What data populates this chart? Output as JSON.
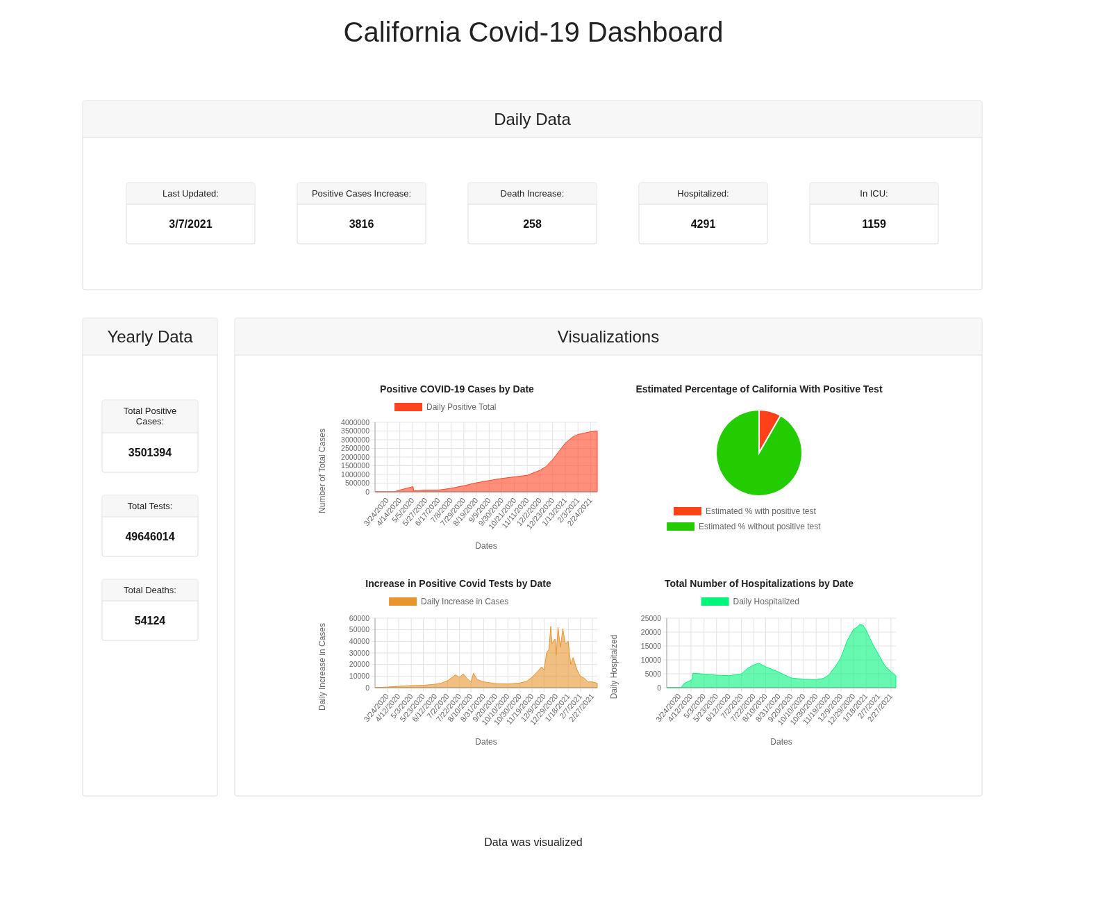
{
  "chart_data": [
    {
      "type": "other",
      "title": "California Covid-19 Dashboard",
      "annotations": [
        "Data was visualized"
      ]
    },
    {
      "type": "other",
      "title": "Daily Data",
      "annotations": [
        "Last Updated:",
        "3/7/2021",
        "Positive Cases Increase:",
        "3816",
        "Death Increase:",
        "258",
        "Hospitalized:",
        "4291",
        "In ICU:",
        "1159"
      ]
    },
    {
      "type": "other",
      "title": "Yearly Data",
      "annotations": [
        "Total Positive Cases:",
        "3501394",
        "Total Tests:",
        "49646014",
        "Total Deaths:",
        "54124"
      ]
    },
    {
      "type": "other",
      "title": "Visualizations"
    },
    {
      "type": "area",
      "title": "Positive COVID-19 Cases by Date",
      "xlabel": "Dates",
      "ylabel": "Number of Total Cases",
      "legend": "top",
      "grid": true,
      "x": [
        "2020-03-04",
        "2020-03-24",
        "2020-04-05",
        "2020-04-14",
        "2020-04-25",
        "2020-05-06",
        "2020-05-07",
        "2020-05-27",
        "2020-06-17",
        "2020-07-08",
        "2020-07-29",
        "2020-08-19",
        "2020-09-09",
        "2020-09-30",
        "2020-10-21",
        "2020-11-11",
        "2020-12-02",
        "2020-12-12",
        "2020-12-23",
        "2021-01-13",
        "2021-01-25",
        "2021-02-03",
        "2021-02-24",
        "2021-03-07"
      ],
      "series": [
        {
          "name": "Daily Positive Total",
          "color": "#ff4422",
          "values": [
            0,
            0,
            0,
            100000,
            200000,
            300000,
            50000,
            100000,
            100000,
            200000,
            350000,
            520000,
            650000,
            770000,
            860000,
            950000,
            1240000,
            1450000,
            1850000,
            2800000,
            3150000,
            3300000,
            3460000,
            3500000
          ]
        }
      ],
      "xlim": [
        "2020-03-04",
        "2021-03-07"
      ],
      "xticks": [
        {
          "value": "2020-03-24",
          "label": "3/24/2020"
        },
        {
          "value": "2020-04-14",
          "label": "4/14/2020"
        },
        {
          "value": "2020-05-05",
          "label": "5/5/2020"
        },
        {
          "value": "2020-05-27",
          "label": "5/27/2020"
        },
        {
          "value": "2020-06-17",
          "label": "6/17/2020"
        },
        {
          "value": "2020-07-08",
          "label": "7/8/2020"
        },
        {
          "value": "2020-07-29",
          "label": "7/29/2020"
        },
        {
          "value": "2020-08-19",
          "label": "8/19/2020"
        },
        {
          "value": "2020-09-09",
          "label": "9/9/2020"
        },
        {
          "value": "2020-09-30",
          "label": "9/30/2020"
        },
        {
          "value": "2020-10-21",
          "label": "10/21/2020"
        },
        {
          "value": "2020-11-11",
          "label": "11/11/2020"
        },
        {
          "value": "2020-12-02",
          "label": "12/2/2020"
        },
        {
          "value": "2020-12-23",
          "label": "12/23/2020"
        },
        {
          "value": "2021-01-13",
          "label": "1/13/2021"
        },
        {
          "value": "2021-02-03",
          "label": "2/3/2021"
        },
        {
          "value": "2021-02-24",
          "label": "2/24/2021"
        }
      ],
      "ylim": [
        0,
        4000000
      ],
      "yticks": [
        0,
        500000,
        1000000,
        1500000,
        2000000,
        2500000,
        3000000,
        3500000,
        4000000
      ]
    },
    {
      "type": "pie",
      "title": "Estimated Percentage of California With Positive Test",
      "legend": "bottom",
      "categories": [
        "Estimated % with positive test",
        "Estimated % without positive test"
      ],
      "values": [
        8.3,
        91.7
      ],
      "colors": [
        "#ff4119",
        "#22cc00"
      ]
    },
    {
      "type": "area",
      "title": "Increase in Positive Covid Tests by Date",
      "xlabel": "Dates",
      "ylabel": "Daily Increase in Cases",
      "legend": "top",
      "grid": true,
      "x": [
        "2020-03-04",
        "2020-03-24",
        "2020-04-12",
        "2020-05-03",
        "2020-05-23",
        "2020-06-12",
        "2020-06-22",
        "2020-07-02",
        "2020-07-10",
        "2020-07-15",
        "2020-07-22",
        "2020-07-28",
        "2020-08-03",
        "2020-08-10",
        "2020-08-14",
        "2020-08-20",
        "2020-08-31",
        "2020-09-20",
        "2020-10-10",
        "2020-10-30",
        "2020-11-10",
        "2020-11-19",
        "2020-11-28",
        "2020-12-05",
        "2020-12-09",
        "2020-12-13",
        "2020-12-17",
        "2020-12-20",
        "2020-12-22",
        "2020-12-27",
        "2020-12-29",
        "2021-01-01",
        "2021-01-05",
        "2021-01-09",
        "2021-01-13",
        "2021-01-18",
        "2021-01-22",
        "2021-01-26",
        "2021-02-01",
        "2021-02-07",
        "2021-02-14",
        "2021-02-20",
        "2021-02-27",
        "2021-03-07"
      ],
      "series": [
        {
          "name": "Daily Increase in Cases",
          "color": "#e8952e",
          "values": [
            0,
            500,
            1200,
            1800,
            2000,
            3000,
            4000,
            6000,
            9000,
            11000,
            9000,
            12000,
            8000,
            5000,
            12500,
            7000,
            5000,
            3500,
            3200,
            4000,
            5500,
            9000,
            14000,
            18000,
            15000,
            30000,
            33000,
            53000,
            38000,
            42000,
            28000,
            52000,
            35000,
            51000,
            38000,
            40000,
            20000,
            26000,
            16000,
            10000,
            8000,
            5000,
            5000,
            3800
          ]
        }
      ],
      "xlim": [
        "2020-03-04",
        "2021-03-07"
      ],
      "xticks": [
        {
          "value": "2020-03-24",
          "label": "3/24/2020"
        },
        {
          "value": "2020-04-12",
          "label": "4/12/2020"
        },
        {
          "value": "2020-05-03",
          "label": "5/3/2020"
        },
        {
          "value": "2020-05-23",
          "label": "5/23/2020"
        },
        {
          "value": "2020-06-12",
          "label": "6/12/2020"
        },
        {
          "value": "2020-07-02",
          "label": "7/2/2020"
        },
        {
          "value": "2020-07-22",
          "label": "7/22/2020"
        },
        {
          "value": "2020-08-10",
          "label": "8/10/2020"
        },
        {
          "value": "2020-08-31",
          "label": "8/31/2020"
        },
        {
          "value": "2020-09-20",
          "label": "9/20/2020"
        },
        {
          "value": "2020-10-10",
          "label": "10/10/2020"
        },
        {
          "value": "2020-10-30",
          "label": "10/30/2020"
        },
        {
          "value": "2020-11-19",
          "label": "11/19/2020"
        },
        {
          "value": "2020-12-09",
          "label": "12/9/2020"
        },
        {
          "value": "2020-12-29",
          "label": "12/29/2020"
        },
        {
          "value": "2021-01-18",
          "label": "1/18/2021"
        },
        {
          "value": "2021-02-07",
          "label": "2/7/2021"
        },
        {
          "value": "2021-02-27",
          "label": "2/27/2021"
        }
      ],
      "ylim": [
        0,
        60000
      ],
      "yticks": [
        0,
        10000,
        20000,
        30000,
        40000,
        50000,
        60000
      ]
    },
    {
      "type": "area",
      "title": "Total Number of Hospitalizations by Date",
      "xlabel": "Dates",
      "ylabel": "Daily Hospitalzed",
      "legend": "top",
      "grid": true,
      "x": [
        "2020-03-04",
        "2020-03-27",
        "2020-04-01",
        "2020-04-10",
        "2020-04-14",
        "2020-04-15",
        "2020-05-03",
        "2020-05-23",
        "2020-06-12",
        "2020-07-02",
        "2020-07-12",
        "2020-07-22",
        "2020-07-30",
        "2020-08-10",
        "2020-08-20",
        "2020-08-31",
        "2020-09-10",
        "2020-09-20",
        "2020-10-10",
        "2020-10-30",
        "2020-11-10",
        "2020-11-19",
        "2020-12-01",
        "2020-12-09",
        "2020-12-19",
        "2020-12-29",
        "2021-01-05",
        "2021-01-08",
        "2021-01-13",
        "2021-01-18",
        "2021-01-28",
        "2021-02-07",
        "2021-02-17",
        "2021-02-27",
        "2021-03-07"
      ],
      "series": [
        {
          "name": "Daily Hospitalized",
          "color": "#00f57a",
          "values": [
            0,
            0,
            1500,
            2500,
            3000,
            5200,
            4900,
            4500,
            4300,
            5000,
            7000,
            8200,
            8800,
            7500,
            6600,
            5600,
            4500,
            3500,
            3000,
            2900,
            3300,
            4500,
            8000,
            11000,
            17000,
            21000,
            22000,
            22800,
            22500,
            20800,
            16000,
            12000,
            8000,
            5800,
            4300
          ]
        }
      ],
      "xlim": [
        "2020-03-04",
        "2021-03-07"
      ],
      "xticks": [
        {
          "value": "2020-03-24",
          "label": "3/24/2020"
        },
        {
          "value": "2020-04-12",
          "label": "4/12/2020"
        },
        {
          "value": "2020-05-03",
          "label": "5/3/2020"
        },
        {
          "value": "2020-05-23",
          "label": "5/23/2020"
        },
        {
          "value": "2020-06-12",
          "label": "6/12/2020"
        },
        {
          "value": "2020-07-02",
          "label": "7/2/2020"
        },
        {
          "value": "2020-07-22",
          "label": "7/22/2020"
        },
        {
          "value": "2020-08-10",
          "label": "8/10/2020"
        },
        {
          "value": "2020-08-31",
          "label": "8/31/2020"
        },
        {
          "value": "2020-09-20",
          "label": "9/20/2020"
        },
        {
          "value": "2020-10-10",
          "label": "10/10/2020"
        },
        {
          "value": "2020-10-30",
          "label": "10/30/2020"
        },
        {
          "value": "2020-11-19",
          "label": "11/19/2020"
        },
        {
          "value": "2020-12-09",
          "label": "12/9/2020"
        },
        {
          "value": "2020-12-29",
          "label": "12/29/2020"
        },
        {
          "value": "2021-01-18",
          "label": "1/18/2021"
        },
        {
          "value": "2021-02-07",
          "label": "2/7/2021"
        },
        {
          "value": "2021-02-27",
          "label": "2/27/2021"
        }
      ],
      "ylim": [
        0,
        25000
      ],
      "yticks": [
        0,
        5000,
        10000,
        15000,
        20000,
        25000
      ]
    }
  ]
}
